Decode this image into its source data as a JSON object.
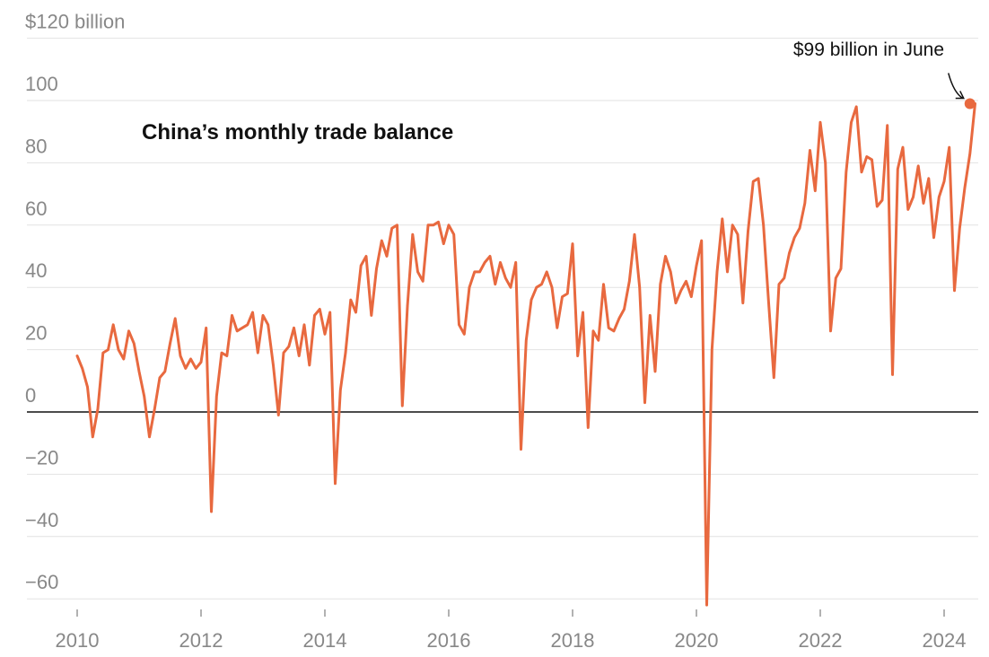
{
  "chart_data": {
    "type": "line",
    "title": "China’s monthly trade balance",
    "ylim": [
      -62,
      120
    ],
    "y_ticks": [
      {
        "value": 120,
        "label": "$120 billion"
      },
      {
        "value": 100,
        "label": "100"
      },
      {
        "value": 80,
        "label": "80"
      },
      {
        "value": 60,
        "label": "60"
      },
      {
        "value": 40,
        "label": "40"
      },
      {
        "value": 20,
        "label": "20"
      },
      {
        "value": 0,
        "label": "0"
      },
      {
        "value": -20,
        "label": "−20"
      },
      {
        "value": -40,
        "label": "−40"
      },
      {
        "value": -60,
        "label": "−60"
      }
    ],
    "x_ticks": [
      {
        "value": 2010,
        "label": "2010"
      },
      {
        "value": 2012,
        "label": "2012"
      },
      {
        "value": 2014,
        "label": "2014"
      },
      {
        "value": 2016,
        "label": "2016"
      },
      {
        "value": 2018,
        "label": "2018"
      },
      {
        "value": 2020,
        "label": "2020"
      },
      {
        "value": 2022,
        "label": "2022"
      },
      {
        "value": 2024,
        "label": "2024"
      }
    ],
    "grid": true,
    "zero_line": true,
    "series": [
      {
        "color": "#e8693f",
        "start": "2010-01",
        "frequency": "monthly",
        "values": [
          18,
          14,
          8,
          -8,
          1,
          19,
          20,
          28,
          20,
          17,
          26,
          22,
          13,
          5,
          -8,
          1,
          11,
          13,
          22,
          30,
          18,
          14,
          17,
          14,
          16,
          27,
          -32,
          5,
          19,
          18,
          31,
          26,
          27,
          28,
          32,
          19,
          31,
          28,
          15,
          -1,
          19,
          21,
          27,
          18,
          28,
          15,
          31,
          33,
          25,
          32,
          -23,
          7,
          19,
          36,
          32,
          47,
          50,
          31,
          46,
          55,
          50,
          59,
          60,
          2,
          34,
          57,
          45,
          42,
          60,
          60,
          61,
          54,
          60,
          57,
          28,
          25,
          40,
          45,
          45,
          48,
          50,
          41,
          48,
          43,
          40,
          48,
          -12,
          23,
          36,
          40,
          41,
          45,
          40,
          27,
          37,
          38,
          54,
          18,
          32,
          -5,
          26,
          23,
          41,
          27,
          26,
          30,
          33,
          42,
          57,
          40,
          3,
          31,
          13,
          41,
          50,
          45,
          35,
          39,
          42,
          37,
          47,
          55,
          -62,
          20,
          45,
          62,
          45,
          60,
          57,
          35,
          58,
          74,
          75,
          60,
          35,
          11,
          41,
          43,
          51,
          56,
          59,
          67,
          84,
          71,
          93,
          80,
          26,
          43,
          46,
          77,
          93,
          98,
          77,
          82,
          81,
          66,
          68,
          92,
          12,
          78,
          85,
          65,
          69,
          79,
          67,
          75,
          56,
          69,
          74,
          85,
          39,
          59,
          72,
          83,
          99
        ]
      }
    ],
    "annotation": {
      "text": "$99 billion in June",
      "x": "2024-06",
      "y": 99
    }
  }
}
